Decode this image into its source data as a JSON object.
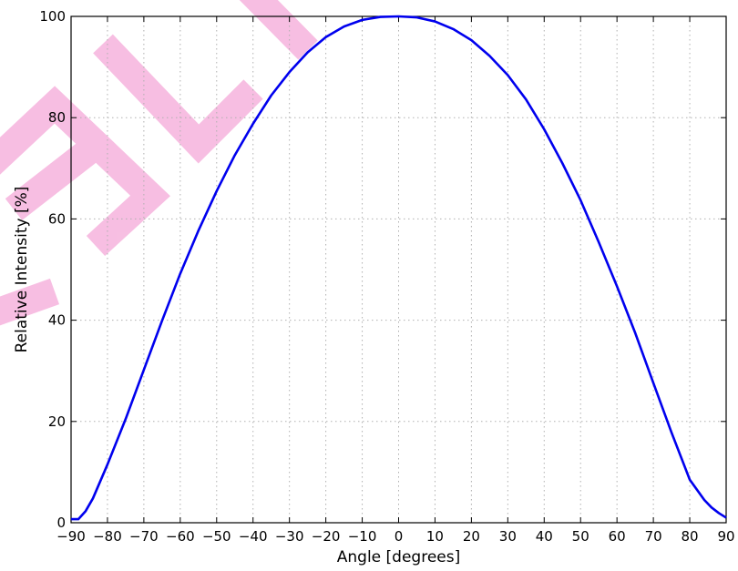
{
  "chart_data": {
    "type": "line",
    "xlabel": "Angle [degrees]",
    "ylabel": "Relative Intensity [%]",
    "xlim": [
      -90,
      90
    ],
    "ylim": [
      0,
      100
    ],
    "x_ticks": [
      -90,
      -80,
      -70,
      -60,
      -50,
      -40,
      -30,
      -20,
      -10,
      0,
      10,
      20,
      30,
      40,
      50,
      60,
      70,
      80,
      90
    ],
    "x_tick_labels": [
      "−90",
      "−80",
      "−70",
      "−60",
      "−50",
      "−40",
      "−30",
      "−20",
      "−10",
      "0",
      "10",
      "20",
      "30",
      "40",
      "50",
      "60",
      "70",
      "80",
      "90"
    ],
    "y_ticks": [
      0,
      20,
      40,
      60,
      80,
      100
    ],
    "y_tick_labels": [
      "0",
      "20",
      "40",
      "60",
      "80",
      "100"
    ],
    "grid": true,
    "series": [
      {
        "color": "#0000ee",
        "x": [
          -90,
          -88,
          -86,
          -84,
          -80,
          -75,
          -70,
          -65,
          -60,
          -55,
          -50,
          -45,
          -40,
          -35,
          -30,
          -25,
          -20,
          -15,
          -10,
          -5,
          0,
          5,
          10,
          15,
          20,
          25,
          30,
          35,
          40,
          45,
          50,
          55,
          60,
          65,
          70,
          75,
          80,
          84,
          86,
          88,
          90
        ],
        "y": [
          0.7,
          0.7,
          2.3,
          4.8,
          11.5,
          20.5,
          30.2,
          39.9,
          49.2,
          57.7,
          65.5,
          72.6,
          78.8,
          84.4,
          89.0,
          92.9,
          95.9,
          98.0,
          99.3,
          99.9,
          100.0,
          99.8,
          99.0,
          97.5,
          95.3,
          92.2,
          88.4,
          83.6,
          77.7,
          71.0,
          63.7,
          55.4,
          46.7,
          37.5,
          27.6,
          17.8,
          8.5,
          4.5,
          3.0,
          1.9,
          1.0
        ]
      }
    ]
  },
  "watermark": {
    "text": "ELI",
    "color": "#f4a6d7"
  }
}
